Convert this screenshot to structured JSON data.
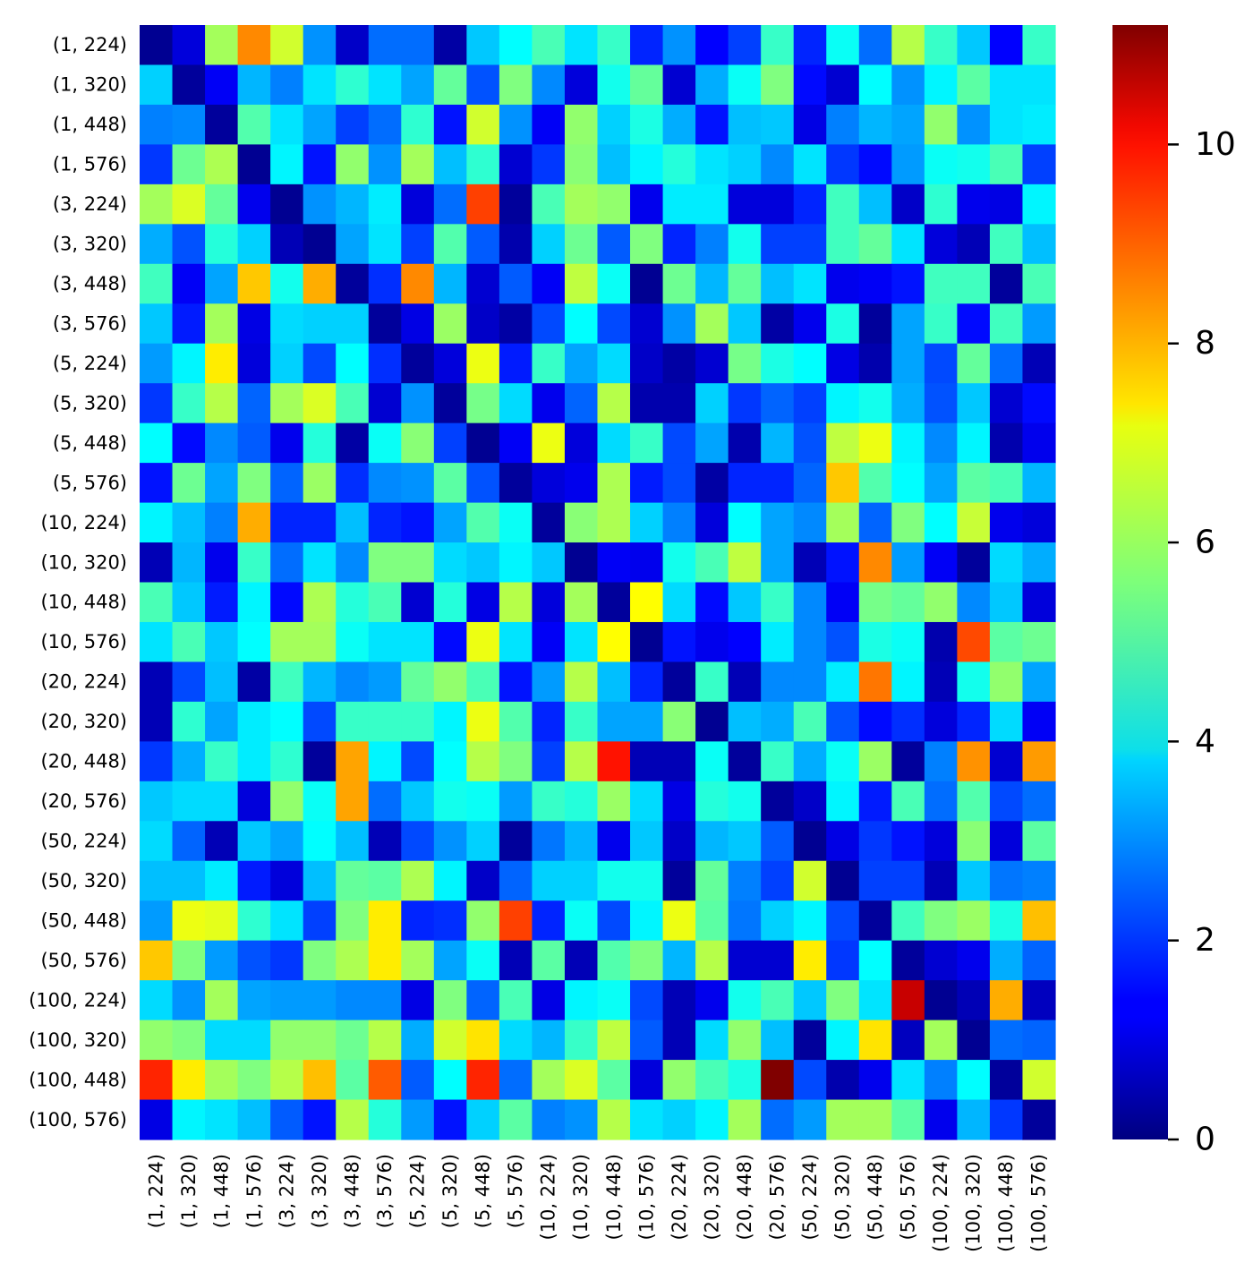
{
  "chart_data": {
    "type": "heatmap",
    "title": "",
    "xlabel": "",
    "ylabel": "",
    "colormap": "jet",
    "vmin": 0,
    "vmax": 11.2,
    "colorbar_ticks": [
      0,
      2,
      4,
      6,
      8,
      10
    ],
    "x_categories": [
      "(1, 224)",
      "(1, 320)",
      "(1, 448)",
      "(1, 576)",
      "(3, 224)",
      "(3, 320)",
      "(3, 448)",
      "(3, 576)",
      "(5, 224)",
      "(5, 320)",
      "(5, 448)",
      "(5, 576)",
      "(10, 224)",
      "(10, 320)",
      "(10, 448)",
      "(10, 576)",
      "(20, 224)",
      "(20, 320)",
      "(20, 448)",
      "(20, 576)",
      "(50, 224)",
      "(50, 320)",
      "(50, 448)",
      "(50, 576)",
      "(100, 224)",
      "(100, 320)",
      "(100, 448)",
      "(100, 576)"
    ],
    "y_categories": [
      "(1, 224)",
      "(1, 320)",
      "(1, 448)",
      "(1, 576)",
      "(3, 224)",
      "(3, 320)",
      "(3, 448)",
      "(3, 576)",
      "(5, 224)",
      "(5, 320)",
      "(5, 448)",
      "(5, 576)",
      "(10, 224)",
      "(10, 320)",
      "(10, 448)",
      "(10, 576)",
      "(20, 224)",
      "(20, 320)",
      "(20, 448)",
      "(20, 576)",
      "(50, 224)",
      "(50, 320)",
      "(50, 448)",
      "(50, 576)",
      "(100, 224)",
      "(100, 320)",
      "(100, 448)",
      "(100, 576)"
    ],
    "values": [
      [
        0.2,
        1.0,
        6.0,
        8.3,
        6.5,
        3.0,
        0.8,
        2.6,
        2.6,
        0.4,
        3.6,
        4.2,
        5.0,
        3.9,
        4.8,
        1.8,
        3.0,
        1.4,
        2.1,
        4.8,
        1.8,
        4.3,
        2.6,
        6.2,
        4.8,
        3.6,
        1.4,
        4.8
      ],
      [
        3.7,
        0.3,
        1.3,
        3.4,
        2.8,
        3.9,
        4.7,
        3.9,
        3.2,
        5.3,
        2.3,
        5.6,
        2.9,
        1.0,
        4.4,
        5.3,
        0.9,
        3.3,
        4.3,
        5.6,
        1.5,
        0.9,
        4.2,
        3.0,
        4.1,
        5.2,
        3.9,
        3.9
      ],
      [
        2.8,
        2.9,
        0.3,
        5.1,
        3.9,
        3.2,
        2.1,
        2.6,
        4.7,
        1.6,
        6.5,
        3.0,
        1.3,
        5.8,
        3.7,
        4.5,
        3.3,
        1.6,
        3.5,
        3.6,
        1.1,
        2.8,
        3.4,
        3.2,
        5.8,
        3.0,
        3.9,
        4.0
      ],
      [
        2.0,
        5.4,
        6.1,
        0.2,
        4.1,
        1.6,
        5.8,
        3.0,
        6.0,
        3.5,
        4.7,
        0.9,
        2.0,
        5.7,
        3.5,
        4.1,
        4.6,
        3.9,
        3.7,
        2.9,
        3.9,
        2.0,
        1.5,
        3.1,
        4.3,
        4.4,
        5.0,
        2.1
      ],
      [
        6.0,
        6.6,
        5.3,
        1.2,
        0.2,
        3.0,
        3.4,
        4.0,
        1.0,
        2.6,
        9.1,
        0.3,
        5.0,
        6.0,
        5.8,
        1.2,
        4.0,
        4.0,
        1.0,
        1.0,
        1.8,
        4.9,
        3.5,
        0.8,
        4.7,
        1.2,
        1.1,
        4.1
      ],
      [
        3.3,
        2.3,
        4.6,
        3.7,
        0.6,
        0.2,
        3.2,
        3.9,
        2.1,
        5.1,
        2.4,
        0.5,
        3.7,
        5.4,
        2.4,
        5.6,
        1.8,
        2.8,
        4.4,
        2.1,
        2.1,
        4.9,
        5.3,
        3.9,
        1.0,
        0.6,
        4.9,
        3.5
      ],
      [
        4.9,
        1.3,
        3.2,
        7.6,
        4.4,
        7.9,
        0.3,
        1.9,
        8.3,
        3.4,
        0.9,
        2.4,
        1.3,
        6.3,
        4.3,
        0.2,
        5.4,
        3.4,
        5.3,
        3.5,
        3.9,
        1.2,
        1.3,
        1.6,
        4.9,
        4.9,
        0.3,
        5.0
      ],
      [
        3.6,
        1.7,
        6.0,
        1.1,
        3.8,
        3.7,
        3.7,
        0.3,
        1.1,
        5.9,
        0.8,
        0.4,
        2.2,
        4.2,
        2.2,
        0.9,
        3.0,
        6.0,
        3.6,
        0.4,
        1.2,
        4.5,
        0.3,
        3.2,
        4.8,
        1.5,
        4.9,
        3.1
      ],
      [
        3.1,
        4.1,
        7.2,
        1.0,
        3.7,
        2.2,
        4.2,
        1.9,
        0.3,
        1.0,
        6.8,
        1.7,
        4.8,
        3.2,
        3.8,
        0.8,
        0.4,
        0.9,
        5.5,
        4.5,
        4.2,
        1.1,
        0.5,
        3.2,
        2.2,
        5.3,
        2.6,
        0.6
      ],
      [
        2.0,
        4.8,
        6.2,
        2.5,
        6.0,
        6.6,
        5.0,
        0.9,
        3.0,
        0.3,
        5.5,
        3.8,
        1.2,
        2.5,
        6.2,
        0.5,
        0.5,
        3.7,
        2.0,
        2.5,
        2.1,
        4.1,
        4.4,
        3.3,
        2.3,
        3.6,
        0.9,
        1.5
      ],
      [
        4.2,
        1.5,
        2.9,
        2.4,
        1.2,
        4.6,
        0.4,
        4.3,
        5.7,
        2.1,
        0.2,
        1.3,
        6.8,
        1.0,
        3.8,
        4.8,
        2.2,
        3.2,
        0.5,
        3.4,
        2.3,
        6.3,
        6.8,
        4.1,
        2.9,
        4.1,
        0.5,
        1.2
      ],
      [
        1.6,
        5.4,
        3.2,
        5.6,
        2.5,
        5.9,
        1.9,
        2.9,
        3.0,
        5.2,
        2.3,
        0.3,
        1.0,
        1.2,
        6.1,
        1.7,
        2.2,
        0.4,
        1.8,
        1.8,
        2.5,
        7.6,
        5.1,
        4.2,
        3.2,
        5.2,
        5.0,
        3.4
      ],
      [
        4.1,
        3.5,
        2.8,
        7.9,
        1.8,
        1.8,
        3.5,
        1.8,
        1.6,
        3.2,
        5.1,
        4.3,
        0.3,
        5.7,
        6.1,
        3.7,
        2.8,
        1.0,
        4.2,
        3.2,
        2.9,
        6.0,
        2.5,
        5.6,
        4.2,
        6.4,
        1.2,
        1.0
      ],
      [
        0.6,
        3.4,
        1.2,
        4.8,
        2.6,
        3.9,
        2.9,
        5.6,
        5.6,
        3.8,
        3.6,
        4.1,
        3.6,
        0.2,
        1.3,
        1.2,
        4.4,
        5.0,
        6.3,
        3.2,
        0.6,
        1.6,
        8.3,
        3.1,
        1.3,
        0.3,
        3.8,
        3.3
      ],
      [
        5.0,
        3.6,
        1.7,
        4.1,
        1.5,
        6.1,
        4.6,
        5.0,
        0.9,
        4.6,
        1.1,
        6.2,
        1.0,
        6.0,
        0.3,
        7.0,
        3.8,
        1.5,
        3.6,
        4.8,
        2.9,
        1.3,
        5.5,
        5.3,
        5.8,
        2.9,
        3.6,
        1.0
      ],
      [
        3.9,
        5.0,
        3.6,
        4.2,
        6.0,
        6.0,
        4.3,
        3.9,
        3.9,
        1.5,
        6.8,
        3.9,
        1.3,
        3.9,
        7.0,
        0.2,
        1.6,
        1.2,
        1.4,
        4.0,
        2.9,
        2.3,
        4.5,
        4.3,
        0.5,
        9.0,
        5.2,
        5.4
      ],
      [
        0.6,
        2.2,
        3.5,
        0.4,
        4.9,
        3.4,
        2.9,
        3.1,
        5.3,
        5.8,
        5.0,
        1.6,
        3.1,
        6.2,
        3.5,
        1.8,
        0.3,
        4.8,
        0.6,
        2.9,
        2.9,
        4.0,
        8.5,
        4.1,
        0.6,
        4.4,
        5.8,
        3.2
      ],
      [
        0.6,
        4.7,
        3.2,
        4.0,
        4.2,
        2.2,
        4.8,
        4.8,
        4.8,
        4.1,
        6.8,
        5.1,
        1.8,
        4.8,
        3.2,
        3.2,
        5.7,
        0.2,
        3.5,
        3.3,
        5.0,
        2.3,
        1.5,
        1.9,
        1.0,
        1.8,
        3.8,
        1.3
      ],
      [
        2.0,
        3.3,
        4.8,
        4.0,
        4.7,
        0.3,
        8.0,
        4.1,
        2.2,
        4.2,
        6.2,
        5.6,
        2.1,
        6.2,
        9.6,
        0.6,
        0.6,
        4.3,
        0.3,
        4.8,
        3.3,
        4.3,
        5.9,
        0.3,
        2.8,
        8.2,
        0.9,
        8.1
      ],
      [
        3.6,
        3.8,
        3.8,
        1.0,
        5.8,
        4.3,
        8.0,
        2.6,
        3.6,
        4.4,
        4.3,
        3.1,
        4.8,
        4.6,
        5.9,
        3.8,
        1.1,
        4.6,
        4.4,
        0.3,
        0.8,
        4.1,
        1.7,
        5.0,
        2.6,
        5.1,
        2.2,
        2.6
      ],
      [
        3.8,
        2.5,
        0.6,
        3.6,
        3.2,
        4.2,
        3.5,
        0.6,
        2.2,
        3.0,
        3.7,
        0.3,
        2.7,
        3.4,
        1.2,
        3.6,
        0.8,
        3.4,
        3.6,
        2.4,
        0.2,
        1.1,
        2.0,
        1.6,
        1.0,
        5.7,
        1.0,
        5.2
      ],
      [
        3.5,
        3.5,
        4.0,
        1.7,
        1.0,
        3.5,
        5.3,
        5.2,
        6.1,
        4.1,
        0.8,
        2.5,
        3.7,
        3.7,
        4.4,
        4.4,
        0.3,
        5.3,
        2.8,
        2.1,
        6.5,
        0.2,
        2.1,
        2.1,
        0.6,
        3.6,
        2.7,
        2.8
      ],
      [
        3.1,
        6.8,
        6.7,
        4.7,
        3.9,
        2.1,
        5.6,
        7.2,
        1.8,
        1.9,
        5.8,
        9.1,
        1.8,
        4.3,
        2.2,
        4.1,
        6.8,
        5.2,
        2.7,
        3.7,
        4.1,
        2.2,
        0.3,
        4.9,
        5.6,
        5.9,
        4.5,
        7.7
      ],
      [
        7.6,
        5.6,
        3.1,
        2.3,
        2.0,
        5.6,
        6.1,
        7.2,
        6.0,
        3.2,
        4.3,
        0.6,
        5.2,
        0.6,
        5.1,
        5.6,
        3.4,
        6.2,
        0.9,
        0.9,
        7.2,
        2.0,
        4.2,
        0.3,
        0.9,
        1.2,
        3.3,
        2.5
      ],
      [
        3.8,
        3.0,
        6.0,
        3.2,
        3.1,
        3.1,
        2.9,
        2.9,
        1.1,
        5.6,
        2.5,
        5.0,
        1.1,
        4.1,
        4.3,
        2.2,
        0.6,
        1.2,
        4.4,
        5.0,
        3.6,
        5.6,
        3.9,
        10.4,
        0.2,
        0.6,
        7.9,
        0.7
      ],
      [
        5.8,
        5.6,
        3.8,
        3.8,
        5.8,
        5.8,
        5.4,
        6.2,
        3.3,
        6.5,
        7.3,
        3.8,
        3.4,
        4.8,
        6.3,
        2.4,
        0.6,
        3.8,
        5.8,
        3.5,
        0.3,
        4.1,
        7.3,
        0.7,
        6.0,
        0.2,
        2.6,
        2.5
      ],
      [
        9.4,
        7.2,
        6.0,
        5.6,
        6.2,
        7.7,
        5.2,
        8.8,
        2.4,
        4.2,
        9.4,
        2.6,
        6.0,
        6.6,
        5.2,
        1.0,
        5.8,
        5.0,
        4.5,
        11.2,
        2.2,
        0.5,
        1.2,
        3.9,
        2.8,
        4.2,
        0.3,
        6.5
      ],
      [
        1.1,
        4.1,
        3.9,
        3.5,
        2.4,
        1.6,
        6.2,
        4.6,
        3.1,
        1.6,
        3.7,
        5.2,
        2.8,
        3.0,
        6.2,
        3.9,
        3.7,
        4.1,
        6.0,
        2.6,
        3.1,
        6.0,
        6.0,
        5.2,
        1.2,
        3.4,
        2.0,
        0.3
      ]
    ]
  }
}
